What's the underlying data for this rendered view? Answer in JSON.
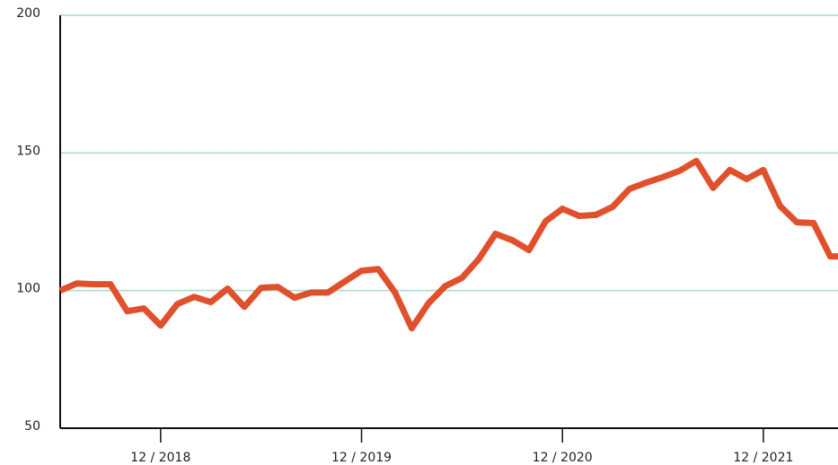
{
  "chart_data": {
    "type": "line",
    "categories": [
      null,
      null,
      null,
      null,
      null,
      null,
      "12 / 2018",
      null,
      null,
      null,
      null,
      null,
      null,
      null,
      null,
      null,
      null,
      null,
      "12 / 2019",
      null,
      null,
      null,
      null,
      null,
      null,
      null,
      null,
      null,
      null,
      null,
      "12 / 2020",
      null,
      null,
      null,
      null,
      null,
      null,
      null,
      null,
      null,
      null,
      null,
      "12 / 2021",
      null,
      null,
      null,
      null,
      null
    ],
    "series": [
      {
        "color": "#e0502c",
        "values": [
          100,
          102.6,
          102.3,
          102.3,
          92.5,
          93.5,
          87.3,
          95.1,
          97.7,
          95.8,
          100.7,
          94.1,
          101,
          101.3,
          97.4,
          99.3,
          99.3,
          103.3,
          107.2,
          107.8,
          99.3,
          86.3,
          95.4,
          101.6,
          104.6,
          111.4,
          120.6,
          118.3,
          114.7,
          125.2,
          129.7,
          127.1,
          127.5,
          130.4,
          136.9,
          139.2,
          141.2,
          143.5,
          147.1,
          137.3,
          143.8,
          140.5,
          143.8,
          130.7,
          124.8,
          124.5,
          112.4,
          112.4
        ]
      }
    ],
    "ylim": [
      50,
      200
    ],
    "yticks": [
      50,
      100,
      150,
      200
    ],
    "grid": true,
    "grid_color": "#a9d9c6"
  }
}
